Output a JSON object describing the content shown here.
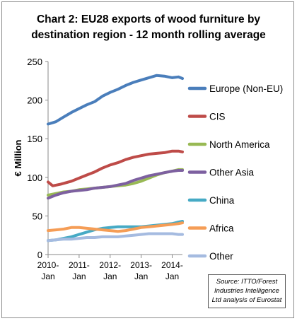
{
  "title_line1": "Chart 2: EU28 exports of wood furniture by",
  "title_line2": "destination region - 12 month rolling average",
  "source_line1": "Source: ITTO/Forest",
  "source_line2": "Industries Intelligence",
  "source_line3": "Ltd analysis of Eurostat",
  "chart_data": {
    "type": "line",
    "title": "Chart 2: EU28 exports of wood furniture by destination region - 12 month rolling average",
    "ylabel": "€ Million",
    "xlabel": "",
    "ylim": [
      0,
      250
    ],
    "yticks": [
      0,
      50,
      100,
      150,
      200,
      250
    ],
    "xlim": [
      2010.0,
      2014.33
    ],
    "xtick_values": [
      2010,
      2011,
      2012,
      2013,
      2014
    ],
    "xtick_labels": [
      [
        "2010-",
        "Jan"
      ],
      [
        "2011-",
        "Jan"
      ],
      [
        "2012-",
        "Jan"
      ],
      [
        "2013-",
        "Jan"
      ],
      [
        "2014-",
        "Jan"
      ]
    ],
    "grid": false,
    "legend_position": "right",
    "series": [
      {
        "name": "Europe (Non-EU)",
        "color": "#4a7ebb",
        "points": [
          [
            2010.0,
            169
          ],
          [
            2010.25,
            172
          ],
          [
            2010.5,
            178
          ],
          [
            2010.75,
            184
          ],
          [
            2011.0,
            189
          ],
          [
            2011.25,
            194
          ],
          [
            2011.5,
            198
          ],
          [
            2011.75,
            205
          ],
          [
            2012.0,
            210
          ],
          [
            2012.25,
            214
          ],
          [
            2012.5,
            219
          ],
          [
            2012.75,
            223
          ],
          [
            2013.0,
            226
          ],
          [
            2013.25,
            229
          ],
          [
            2013.5,
            232
          ],
          [
            2013.75,
            231
          ],
          [
            2014.0,
            229
          ],
          [
            2014.2,
            230
          ],
          [
            2014.33,
            228
          ]
        ]
      },
      {
        "name": "CIS",
        "color": "#be4b48",
        "points": [
          [
            2010.0,
            94
          ],
          [
            2010.15,
            89
          ],
          [
            2010.4,
            91
          ],
          [
            2010.75,
            95
          ],
          [
            2011.0,
            99
          ],
          [
            2011.25,
            103
          ],
          [
            2011.5,
            107
          ],
          [
            2011.75,
            112
          ],
          [
            2012.0,
            116
          ],
          [
            2012.25,
            119
          ],
          [
            2012.5,
            123
          ],
          [
            2012.75,
            126
          ],
          [
            2013.0,
            128
          ],
          [
            2013.25,
            130
          ],
          [
            2013.5,
            131
          ],
          [
            2013.75,
            132
          ],
          [
            2014.0,
            134
          ],
          [
            2014.2,
            134
          ],
          [
            2014.33,
            133
          ]
        ]
      },
      {
        "name": "North America",
        "color": "#98b954",
        "points": [
          [
            2010.0,
            77
          ],
          [
            2010.25,
            79
          ],
          [
            2010.5,
            81
          ],
          [
            2010.75,
            82
          ],
          [
            2011.0,
            84
          ],
          [
            2011.25,
            85
          ],
          [
            2011.5,
            86
          ],
          [
            2011.75,
            87
          ],
          [
            2012.0,
            88
          ],
          [
            2012.25,
            89
          ],
          [
            2012.5,
            90
          ],
          [
            2012.75,
            92
          ],
          [
            2013.0,
            95
          ],
          [
            2013.25,
            99
          ],
          [
            2013.5,
            103
          ],
          [
            2013.75,
            106
          ],
          [
            2014.0,
            108
          ],
          [
            2014.2,
            110
          ],
          [
            2014.33,
            110
          ]
        ]
      },
      {
        "name": "Other Asia",
        "color": "#7d60a0",
        "points": [
          [
            2010.0,
            73
          ],
          [
            2010.25,
            77
          ],
          [
            2010.5,
            80
          ],
          [
            2010.75,
            82
          ],
          [
            2011.0,
            83
          ],
          [
            2011.25,
            84
          ],
          [
            2011.5,
            86
          ],
          [
            2011.75,
            87
          ],
          [
            2012.0,
            88
          ],
          [
            2012.25,
            90
          ],
          [
            2012.5,
            92
          ],
          [
            2012.75,
            96
          ],
          [
            2013.0,
            99
          ],
          [
            2013.25,
            102
          ],
          [
            2013.5,
            104
          ],
          [
            2013.75,
            106
          ],
          [
            2014.0,
            108
          ],
          [
            2014.2,
            109
          ],
          [
            2014.33,
            109
          ]
        ]
      },
      {
        "name": "China",
        "color": "#46aac5",
        "points": [
          [
            2010.0,
            18
          ],
          [
            2010.25,
            19
          ],
          [
            2010.5,
            21
          ],
          [
            2010.75,
            23
          ],
          [
            2011.0,
            26
          ],
          [
            2011.25,
            29
          ],
          [
            2011.5,
            32
          ],
          [
            2011.75,
            34
          ],
          [
            2012.0,
            35
          ],
          [
            2012.25,
            36
          ],
          [
            2012.5,
            36
          ],
          [
            2012.75,
            36
          ],
          [
            2013.0,
            36
          ],
          [
            2013.25,
            37
          ],
          [
            2013.5,
            38
          ],
          [
            2013.75,
            39
          ],
          [
            2014.0,
            40
          ],
          [
            2014.2,
            42
          ],
          [
            2014.33,
            43
          ]
        ]
      },
      {
        "name": "Africa",
        "color": "#f59d56",
        "points": [
          [
            2010.0,
            31
          ],
          [
            2010.25,
            32
          ],
          [
            2010.5,
            33
          ],
          [
            2010.75,
            35
          ],
          [
            2011.0,
            35
          ],
          [
            2011.25,
            34
          ],
          [
            2011.5,
            33
          ],
          [
            2011.75,
            32
          ],
          [
            2012.0,
            31
          ],
          [
            2012.25,
            30
          ],
          [
            2012.5,
            31
          ],
          [
            2012.75,
            33
          ],
          [
            2013.0,
            35
          ],
          [
            2013.25,
            36
          ],
          [
            2013.5,
            37
          ],
          [
            2013.75,
            38
          ],
          [
            2014.0,
            39
          ],
          [
            2014.2,
            40
          ],
          [
            2014.33,
            41
          ]
        ]
      },
      {
        "name": "Other",
        "color": "#a5bbe0",
        "points": [
          [
            2010.0,
            18
          ],
          [
            2010.25,
            19
          ],
          [
            2010.5,
            20
          ],
          [
            2010.75,
            20
          ],
          [
            2011.0,
            21
          ],
          [
            2011.25,
            22
          ],
          [
            2011.5,
            22
          ],
          [
            2011.75,
            23
          ],
          [
            2012.0,
            23
          ],
          [
            2012.25,
            23
          ],
          [
            2012.5,
            24
          ],
          [
            2012.75,
            25
          ],
          [
            2013.0,
            26
          ],
          [
            2013.25,
            27
          ],
          [
            2013.5,
            27
          ],
          [
            2013.75,
            27
          ],
          [
            2014.0,
            27
          ],
          [
            2014.2,
            26
          ],
          [
            2014.33,
            26
          ]
        ]
      }
    ]
  }
}
